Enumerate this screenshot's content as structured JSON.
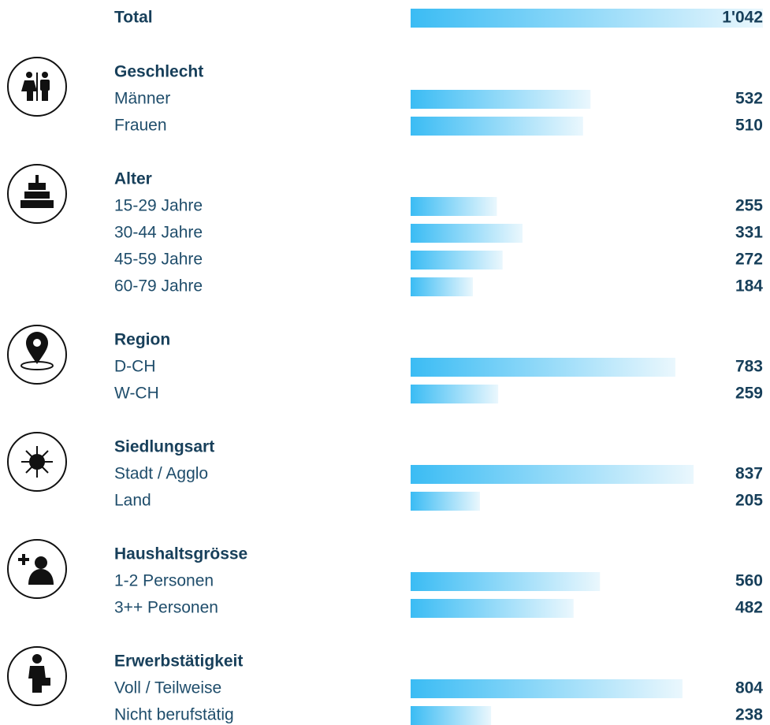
{
  "chart_data": {
    "type": "bar",
    "total": {
      "label": "Total",
      "value": 1042,
      "value_label": "1'042"
    },
    "color": "#3bbcf4",
    "groups": [
      {
        "title": "Geschlecht",
        "categories": [
          "Männer",
          "Frauen"
        ],
        "values": [
          532,
          510
        ]
      },
      {
        "title": "Alter",
        "categories": [
          "15-29 Jahre",
          "30-44 Jahre",
          "45-59 Jahre",
          "60-79 Jahre"
        ],
        "values": [
          255,
          331,
          272,
          184
        ]
      },
      {
        "title": "Region",
        "categories": [
          "D-CH",
          "W-CH"
        ],
        "values": [
          783,
          259
        ]
      },
      {
        "title": "Siedlungsart",
        "categories": [
          "Stadt / Agglo",
          "Land"
        ],
        "values": [
          837,
          205
        ]
      },
      {
        "title": "Haushaltsgrösse",
        "categories": [
          "1-2 Personen",
          "3++ Personen"
        ],
        "values": [
          560,
          482
        ]
      },
      {
        "title": "Erwerbstätigkeit",
        "categories": [
          "Voll / Teilweise",
          "Nicht berufstätig"
        ],
        "values": [
          804,
          238
        ]
      }
    ]
  }
}
